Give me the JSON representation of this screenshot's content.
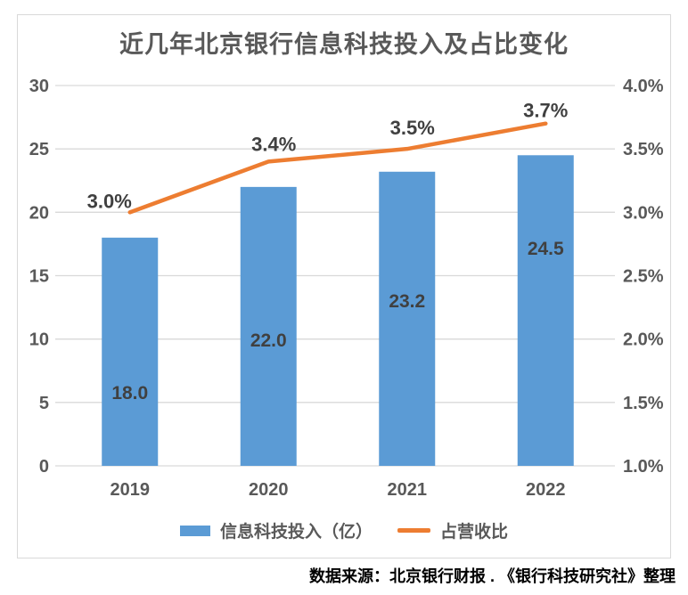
{
  "chart_data": {
    "type": "combo-bar-line",
    "title": "近几年北京银行信息科技投入及占比变化",
    "categories": [
      "2019",
      "2020",
      "2021",
      "2022"
    ],
    "series": [
      {
        "name": "信息科技投入（亿）",
        "type": "bar",
        "axis": "left",
        "color": "#5B9BD5",
        "values": [
          18.0,
          22.0,
          23.2,
          24.5
        ],
        "data_labels": [
          "18.0",
          "22.0",
          "23.2",
          "24.5"
        ]
      },
      {
        "name": "占营收比",
        "type": "line",
        "axis": "right",
        "color": "#ED7D31",
        "values": [
          3.0,
          3.4,
          3.5,
          3.7
        ],
        "data_labels": [
          "3.0%",
          "3.4%",
          "3.5%",
          "3.7%"
        ]
      }
    ],
    "left_axis": {
      "min": 0,
      "max": 30,
      "step": 5,
      "ticks": [
        "0",
        "5",
        "10",
        "15",
        "20",
        "25",
        "30"
      ]
    },
    "right_axis": {
      "min": 1.0,
      "max": 4.0,
      "step": 0.5,
      "ticks": [
        "1.0%",
        "1.5%",
        "2.0%",
        "2.5%",
        "3.0%",
        "3.5%",
        "4.0%"
      ]
    },
    "grid": true,
    "legend_position": "bottom"
  },
  "colors": {
    "bar": "#5B9BD5",
    "line": "#ED7D31",
    "grid": "#D9D9D9",
    "border": "#D9D9D9",
    "axis_text": "#595959",
    "category_text": "#595959",
    "data_label_text": "#404040",
    "title_text": "#595959",
    "legend_text": "#595959",
    "footer_text": "#000000"
  },
  "footer": {
    "source": "数据来源：北京银行财报 . 《银行科技研究社》整理"
  }
}
